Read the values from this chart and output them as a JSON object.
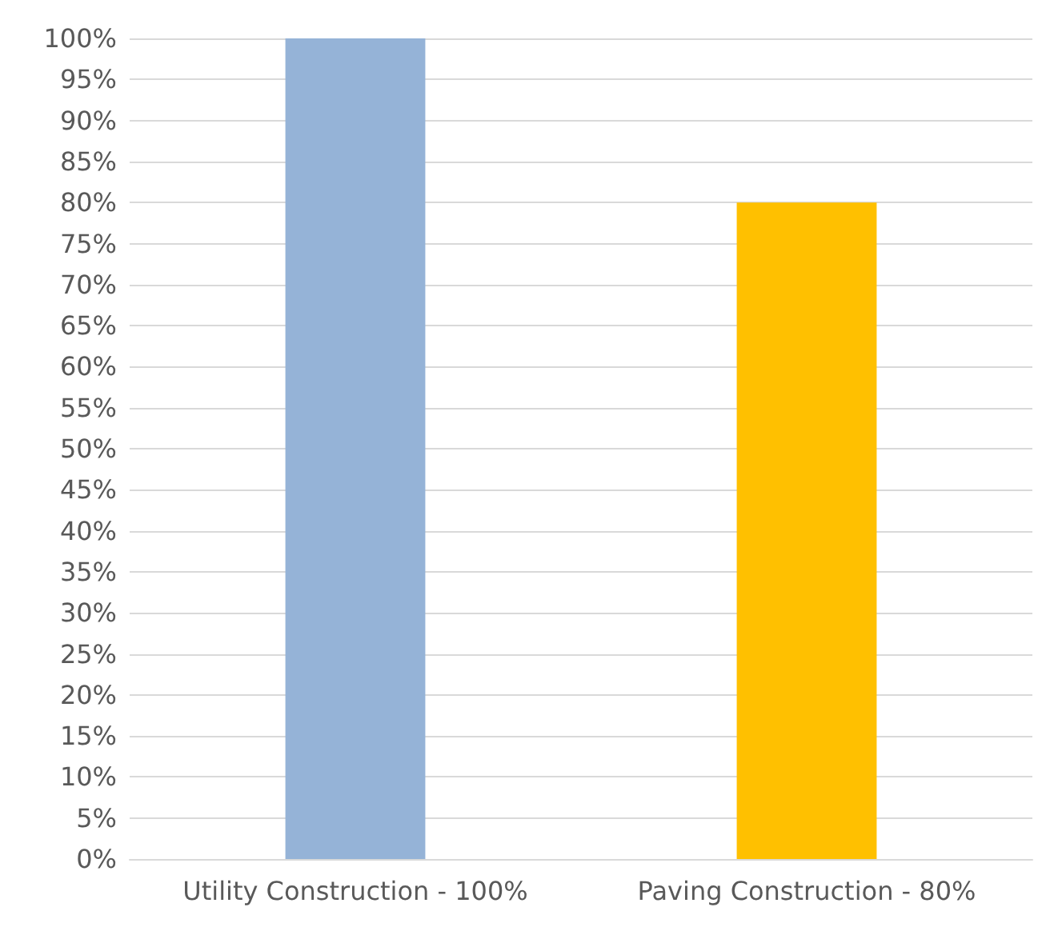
{
  "chart_data": {
    "type": "bar",
    "categories": [
      "Utility Construction - 100%",
      "Paving Construction - 80%"
    ],
    "values": [
      100,
      80
    ],
    "colors": [
      "#95b3d7",
      "#ffc000"
    ],
    "ylim": [
      0,
      100
    ],
    "yticks": [
      {
        "value": 0,
        "label": "0%"
      },
      {
        "value": 5,
        "label": "5%"
      },
      {
        "value": 10,
        "label": "10%"
      },
      {
        "value": 15,
        "label": "15%"
      },
      {
        "value": 20,
        "label": "20%"
      },
      {
        "value": 25,
        "label": "25%"
      },
      {
        "value": 30,
        "label": "30%"
      },
      {
        "value": 35,
        "label": "35%"
      },
      {
        "value": 40,
        "label": "40%"
      },
      {
        "value": 45,
        "label": "45%"
      },
      {
        "value": 50,
        "label": "50%"
      },
      {
        "value": 55,
        "label": "55%"
      },
      {
        "value": 60,
        "label": "60%"
      },
      {
        "value": 65,
        "label": "65%"
      },
      {
        "value": 70,
        "label": "70%"
      },
      {
        "value": 75,
        "label": "75%"
      },
      {
        "value": 80,
        "label": "80%"
      },
      {
        "value": 85,
        "label": "85%"
      },
      {
        "value": 90,
        "label": "90%"
      },
      {
        "value": 95,
        "label": "95%"
      },
      {
        "value": 100,
        "label": "100%"
      }
    ],
    "grid": "y"
  }
}
